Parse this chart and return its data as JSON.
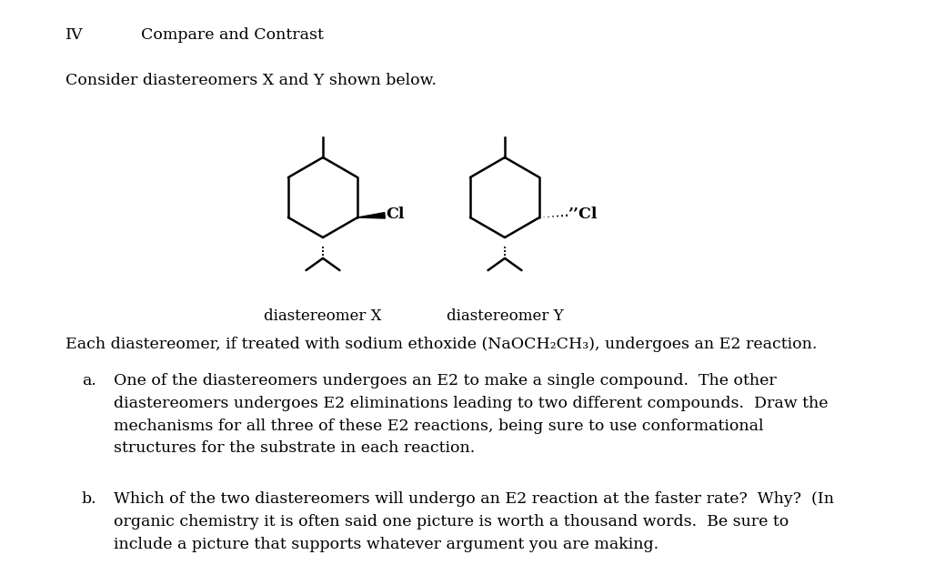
{
  "background_color": "#ffffff",
  "fig_width": 10.17,
  "fig_height": 6.32,
  "dpi": 100,
  "font_size": 12.5,
  "title_iv": "IV",
  "title_contrast": "Compare and Contrast",
  "intro": "Consider diastereomers X and Y shown below.",
  "label_X": "diastereomer X",
  "label_Y": "diastereomer Y",
  "para_intro": "Each diastereomer, if treated with sodium ethoxide (NaOCH₂CH₃), undergoes an E2 reaction.",
  "item_a_label": "a.",
  "item_a_text": "One of the diastereomers undergoes an E2 to make a single compound.  The other\ndiastereomers undergoes E2 eliminations leading to two different compounds.  Draw the\nmechanisms for all three of these E2 reactions, being sure to use conformational\nstructures for the substrate in each reaction.",
  "item_b_label": "b.",
  "item_b_text": "Which of the two diastereomers will undergo an E2 reaction at the faster rate?  Why?  (In\norganic chemistry it is often said one picture is worth a thousand words.  Be sure to\ninclude a picture that supports whatever argument you are making."
}
